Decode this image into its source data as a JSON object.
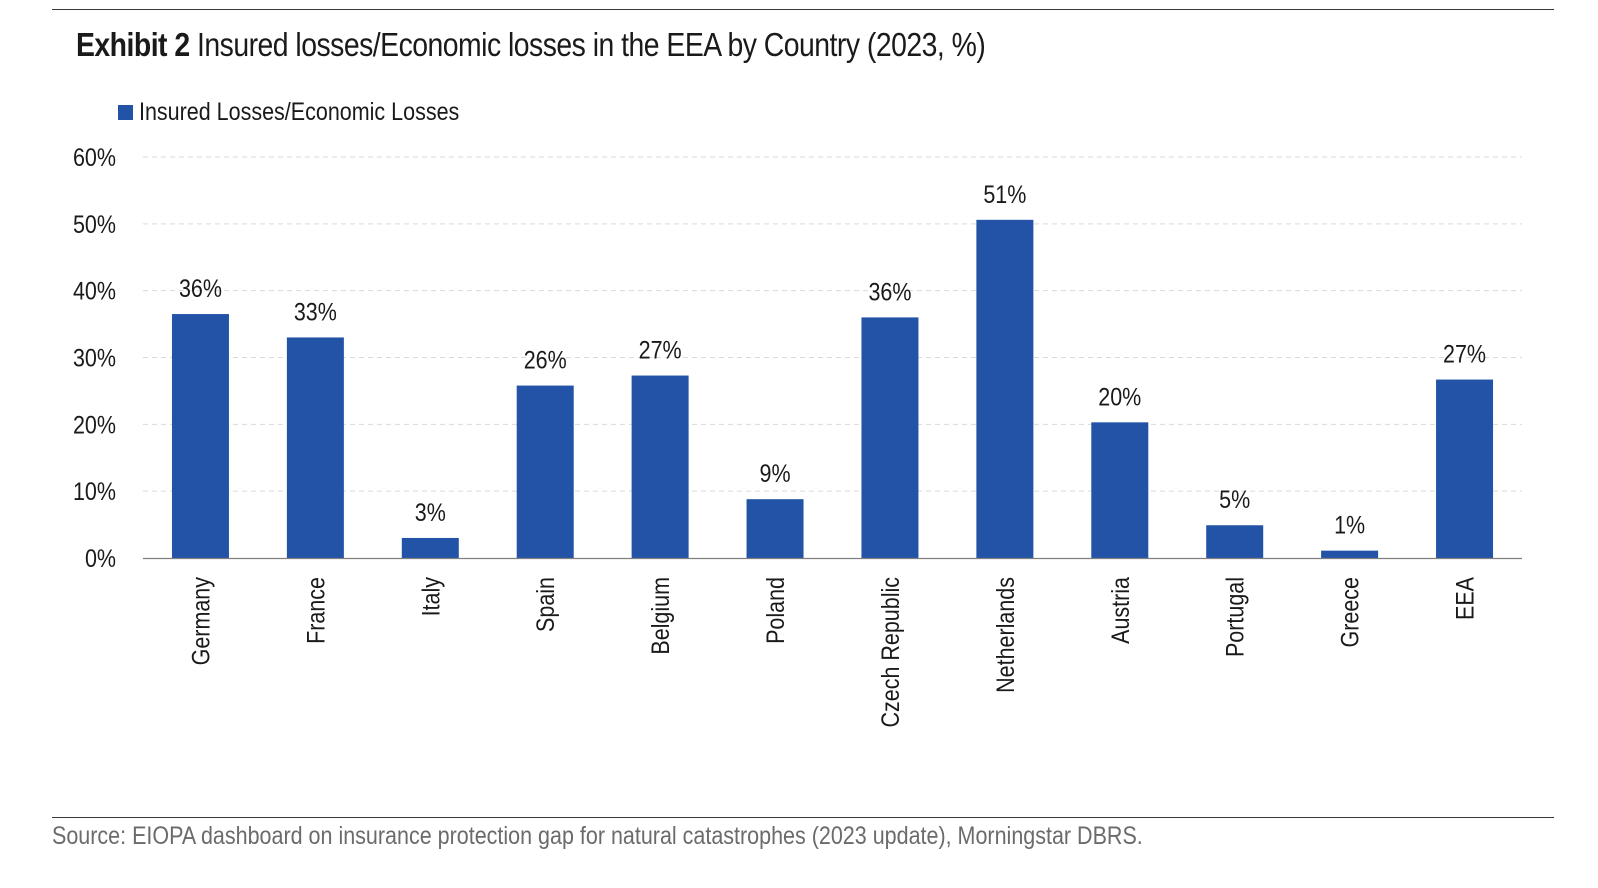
{
  "header": {
    "exhibit_label": "Exhibit 2",
    "title_text": "Insured losses/Economic losses in the EEA by Country (2023, %)"
  },
  "footer": {
    "source": "Source: EIOPA dashboard on insurance protection gap for natural catastrophes (2023 update), Morningstar DBRS."
  },
  "colors": {
    "bar": "#2253A6",
    "gridline": "#d9d9d9",
    "axis": "#7f7f7f"
  },
  "chart_data": {
    "type": "bar",
    "title": "Insured losses/Economic losses in the EEA by Country (2023, %)",
    "xlabel": "",
    "ylabel": "",
    "ylim": [
      0,
      60
    ],
    "yticks": [
      0,
      10,
      20,
      30,
      40,
      50,
      60
    ],
    "ytick_labels": [
      "0%",
      "10%",
      "20%",
      "30%",
      "40%",
      "50%",
      "60%"
    ],
    "legend_position": "top-left",
    "grid": true,
    "categories": [
      "Germany",
      "France",
      "Italy",
      "Spain",
      "Belgium",
      "Poland",
      "Czech Republic",
      "Netherlands",
      "Austria",
      "Portugal",
      "Greece",
      "EEA"
    ],
    "series": [
      {
        "name": "Insured Losses/Economic Losses",
        "values": [
          36.5,
          33.0,
          3.0,
          25.8,
          27.3,
          8.8,
          36.0,
          50.6,
          20.3,
          4.9,
          1.1,
          26.7
        ],
        "data_labels": [
          "36%",
          "33%",
          "3%",
          "26%",
          "27%",
          "9%",
          "36%",
          "51%",
          "20%",
          "5%",
          "1%",
          "27%"
        ]
      }
    ]
  }
}
